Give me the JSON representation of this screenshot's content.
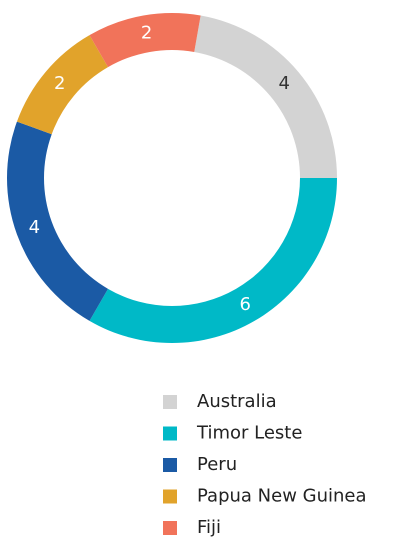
{
  "chart_data": {
    "type": "pie",
    "categories": [
      "Australia",
      "Timor Leste",
      "Peru",
      "Papua New Guinea",
      "Fiji"
    ],
    "values": [
      4,
      6,
      4,
      2,
      2
    ],
    "colors": [
      "#d3d3d3",
      "#00b9c7",
      "#1b5aa5",
      "#e1a32b",
      "#f1735a"
    ],
    "donut": true,
    "legend": "bottom"
  }
}
